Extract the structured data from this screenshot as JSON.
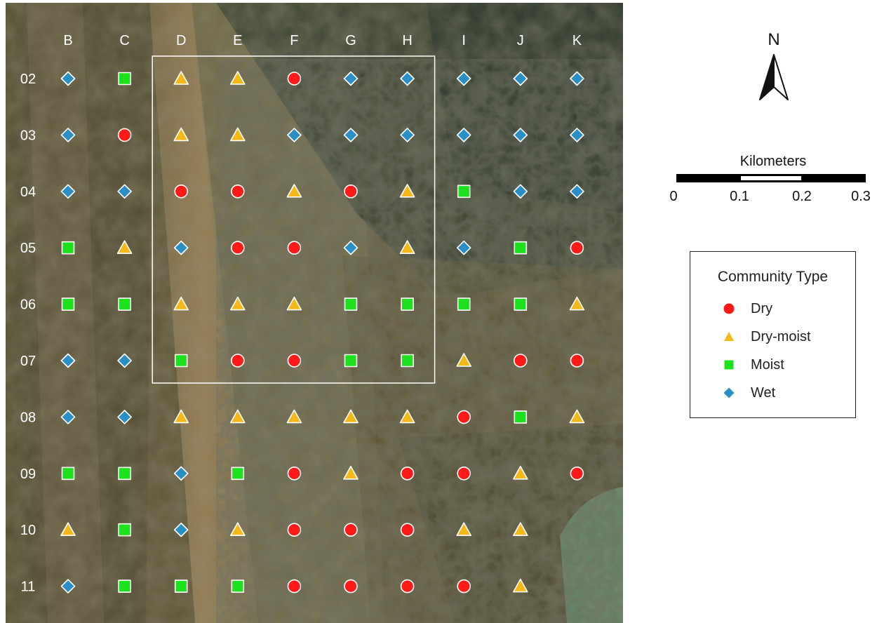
{
  "map": {
    "columns": [
      "B",
      "C",
      "D",
      "E",
      "F",
      "G",
      "H",
      "I",
      "J",
      "K"
    ],
    "rows": [
      "02",
      "03",
      "04",
      "05",
      "06",
      "07",
      "08",
      "09",
      "10",
      "11"
    ],
    "study_area": {
      "from_col": "D",
      "to_col": "H",
      "from_row": "02",
      "to_row": "07"
    },
    "grid": [
      [
        "wet",
        "moist",
        "dry-moist",
        "dry-moist",
        "dry",
        "wet",
        "wet",
        "wet",
        "wet",
        "wet"
      ],
      [
        "wet",
        "dry",
        "dry-moist",
        "dry-moist",
        "wet",
        "wet",
        "wet",
        "wet",
        "wet",
        "wet"
      ],
      [
        "wet",
        "wet",
        "dry",
        "dry",
        "dry-moist",
        "dry",
        "dry-moist",
        "moist",
        "wet",
        "wet"
      ],
      [
        "moist",
        "dry-moist",
        "wet",
        "dry",
        "dry",
        "wet",
        "dry-moist",
        "wet",
        "moist",
        "dry"
      ],
      [
        "moist",
        "moist",
        "dry-moist",
        "dry-moist",
        "dry-moist",
        "moist",
        "moist",
        "moist",
        "moist",
        "dry-moist"
      ],
      [
        "wet",
        "wet",
        "moist",
        "dry",
        "dry",
        "moist",
        "moist",
        "dry-moist",
        "dry",
        "dry"
      ],
      [
        "wet",
        "wet",
        "dry-moist",
        "dry-moist",
        "dry-moist",
        "dry-moist",
        "dry-moist",
        "dry",
        "moist",
        "dry-moist"
      ],
      [
        "moist",
        "moist",
        "wet",
        "moist",
        "dry",
        "dry-moist",
        "dry",
        "dry",
        "dry-moist",
        "dry"
      ],
      [
        "dry-moist",
        "moist",
        "wet",
        "dry-moist",
        "dry",
        "dry",
        "dry",
        "dry-moist",
        "dry-moist",
        ""
      ],
      [
        "wet",
        "moist",
        "moist",
        "moist",
        "dry",
        "dry",
        "dry",
        "dry",
        "dry-moist",
        ""
      ]
    ]
  },
  "north_arrow": {
    "label": "N"
  },
  "scale_bar": {
    "title": "Kilometers",
    "ticks": [
      "0",
      "0.1",
      "0.2",
      "0.3"
    ]
  },
  "legend": {
    "title": "Community Type",
    "items": [
      {
        "key": "dry",
        "label": "Dry",
        "shape": "circle",
        "color": "#ff1a1a"
      },
      {
        "key": "dry-moist",
        "label": "Dry-moist",
        "shape": "triangle",
        "color": "#f5b819"
      },
      {
        "key": "moist",
        "label": "Moist",
        "shape": "square",
        "color": "#1ee11e"
      },
      {
        "key": "wet",
        "label": "Wet",
        "shape": "diamond",
        "color": "#2a8fc4"
      }
    ]
  },
  "colors": {
    "imagery_base": "#5e5537",
    "imagery_dark": "#2e3a2c",
    "imagery_light": "#8a7a55",
    "study_box": "#ffffff"
  }
}
